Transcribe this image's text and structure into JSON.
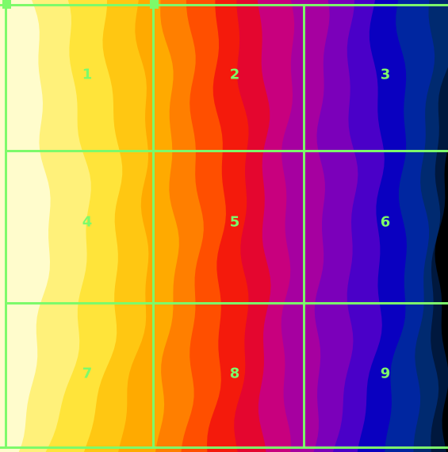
{
  "grid": {
    "line_color": "#7dfa6a",
    "cells": [
      {
        "label": "1"
      },
      {
        "label": "2"
      },
      {
        "label": "3"
      },
      {
        "label": "4"
      },
      {
        "label": "5"
      },
      {
        "label": "6"
      },
      {
        "label": "7"
      },
      {
        "label": "8"
      },
      {
        "label": "9"
      }
    ]
  },
  "colormap": [
    "#fffccc",
    "#fff17a",
    "#ffe43a",
    "#ffc712",
    "#ffaa00",
    "#ff7f00",
    "#ff4f00",
    "#f41a0c",
    "#e4062f",
    "#c8007e",
    "#a600a0",
    "#7b00ba",
    "#4a00c8",
    "#0a00c0",
    "#0026a0",
    "#002a70",
    "#00183e",
    "#000000"
  ]
}
